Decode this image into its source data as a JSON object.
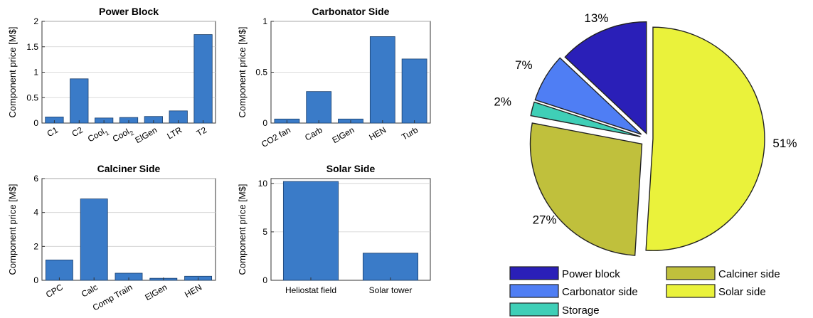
{
  "chart_data": [
    {
      "type": "bar",
      "title": "Power Block",
      "ylabel": "Component price [M$]",
      "categories": [
        "C1",
        "C2",
        "Cool_1",
        "Cool_2",
        "ElGen",
        "LTR",
        "T2"
      ],
      "category_labels": [
        {
          "text": "C1"
        },
        {
          "text": "C2"
        },
        {
          "text": "Cool",
          "sub": "1"
        },
        {
          "text": "Cool",
          "sub": "2"
        },
        {
          "text": "ElGen"
        },
        {
          "text": "LTR"
        },
        {
          "text": "T2"
        }
      ],
      "values": [
        0.12,
        0.87,
        0.1,
        0.11,
        0.13,
        0.24,
        1.74
      ],
      "ylim": [
        0,
        2
      ],
      "yticks": [
        0,
        0.5,
        1,
        1.5,
        2
      ],
      "ytick_labels": [
        "0",
        "0.5",
        "1",
        "1.5",
        "2"
      ],
      "grid": true
    },
    {
      "type": "bar",
      "title": "Carbonator Side",
      "ylabel": "Component price [M$]",
      "categories": [
        "CO2 fan",
        "Carb",
        "ElGen",
        "HEN",
        "Turb"
      ],
      "category_labels": [
        {
          "text": "CO2 fan"
        },
        {
          "text": "Carb"
        },
        {
          "text": "ElGen"
        },
        {
          "text": "HEN"
        },
        {
          "text": "Turb"
        }
      ],
      "values": [
        0.04,
        0.31,
        0.04,
        0.85,
        0.63
      ],
      "ylim": [
        0,
        1
      ],
      "yticks": [
        0,
        0.5,
        1
      ],
      "ytick_labels": [
        "0",
        "0.5",
        "1"
      ],
      "grid": true
    },
    {
      "type": "bar",
      "title": "Calciner Side",
      "ylabel": "Component price [M$]",
      "categories": [
        "CPC",
        "Calc",
        "Comp Train",
        "ElGen",
        "HEN"
      ],
      "category_labels": [
        {
          "text": "CPC"
        },
        {
          "text": "Calc"
        },
        {
          "text": "Comp Train"
        },
        {
          "text": "ElGen"
        },
        {
          "text": "HEN"
        }
      ],
      "values": [
        1.2,
        4.8,
        0.42,
        0.12,
        0.24
      ],
      "ylim": [
        0,
        6
      ],
      "yticks": [
        0,
        2,
        4,
        6
      ],
      "ytick_labels": [
        "0",
        "2",
        "4",
        "6"
      ],
      "grid": true
    },
    {
      "type": "bar",
      "title": "Solar Side",
      "ylabel": "Component price [M$]",
      "categories": [
        "Heliostat field",
        "Solar tower"
      ],
      "category_labels": [
        {
          "text": "Heliostat field"
        },
        {
          "text": "Solar tower"
        }
      ],
      "values": [
        10.2,
        2.8
      ],
      "ylim": [
        0,
        10.5
      ],
      "yticks": [
        0,
        5,
        10
      ],
      "ytick_labels": [
        "0",
        "5",
        "10"
      ],
      "grid": true
    },
    {
      "type": "pie",
      "title": "",
      "categories": [
        "Power block",
        "Carbonator side",
        "Storage",
        "Calciner side",
        "Solar side"
      ],
      "values": [
        13,
        7,
        2,
        27,
        51
      ],
      "labels": [
        "13%",
        "7%",
        "2%",
        "27%",
        "51%"
      ],
      "colors": [
        "#2a1fb8",
        "#4f7ef4",
        "#3fcfb7",
        "#c0c03c",
        "#eaf23b"
      ],
      "exploded": true,
      "legend_position": "bottom"
    }
  ]
}
